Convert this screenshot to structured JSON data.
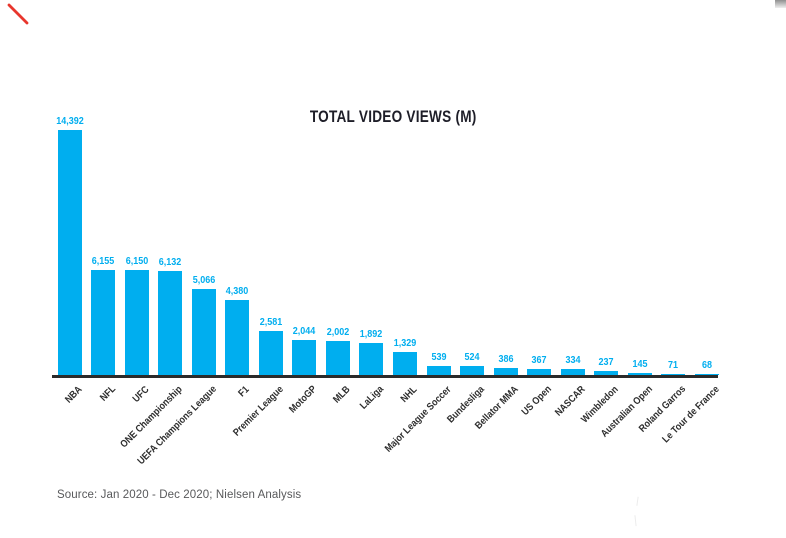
{
  "page": {
    "source_note": "Source: Jan 2020 - Dec 2020; Nielsen Analysis"
  },
  "annotations": {
    "red_pen_mark_color": "#e8362d",
    "scrollbar_fragment_color": "#9a9a9a"
  },
  "chart_data": {
    "type": "bar",
    "title": "TOTAL VIDEO VIEWS (M)",
    "categories": [
      "NBA",
      "NFL",
      "UFC",
      "ONE Championship",
      "UEFA Champions League",
      "F1",
      "Premier League",
      "MotoGP",
      "MLB",
      "LaLiga",
      "NHL",
      "Major League Soccer",
      "Bundesliga",
      "Bellator MMA",
      "US Open",
      "NASCAR",
      "Wimbledon",
      "Australian Open",
      "Roland Garros",
      "Le Tour de France"
    ],
    "values": [
      14392,
      6155,
      6150,
      6132,
      5066,
      4380,
      2581,
      2044,
      2002,
      1892,
      1329,
      539,
      524,
      386,
      367,
      334,
      237,
      145,
      71,
      68
    ],
    "value_labels": [
      "14,392",
      "6,155",
      "6,150",
      "6,132",
      "5,066",
      "4,380",
      "2,581",
      "2,044",
      "2,002",
      "1,892",
      "1,329",
      "539",
      "524",
      "386",
      "367",
      "334",
      "237",
      "145",
      "71",
      "68"
    ],
    "xlabel": "",
    "ylabel": "",
    "ylim": [
      0,
      14392
    ],
    "grid": false,
    "legend_position": "none",
    "bar_color": "#00aeef",
    "value_label_color": "#00aeef",
    "category_label_color": "#2d2d2d",
    "axis_color": "#2b2b2b",
    "title_color": "#1e1e28"
  }
}
